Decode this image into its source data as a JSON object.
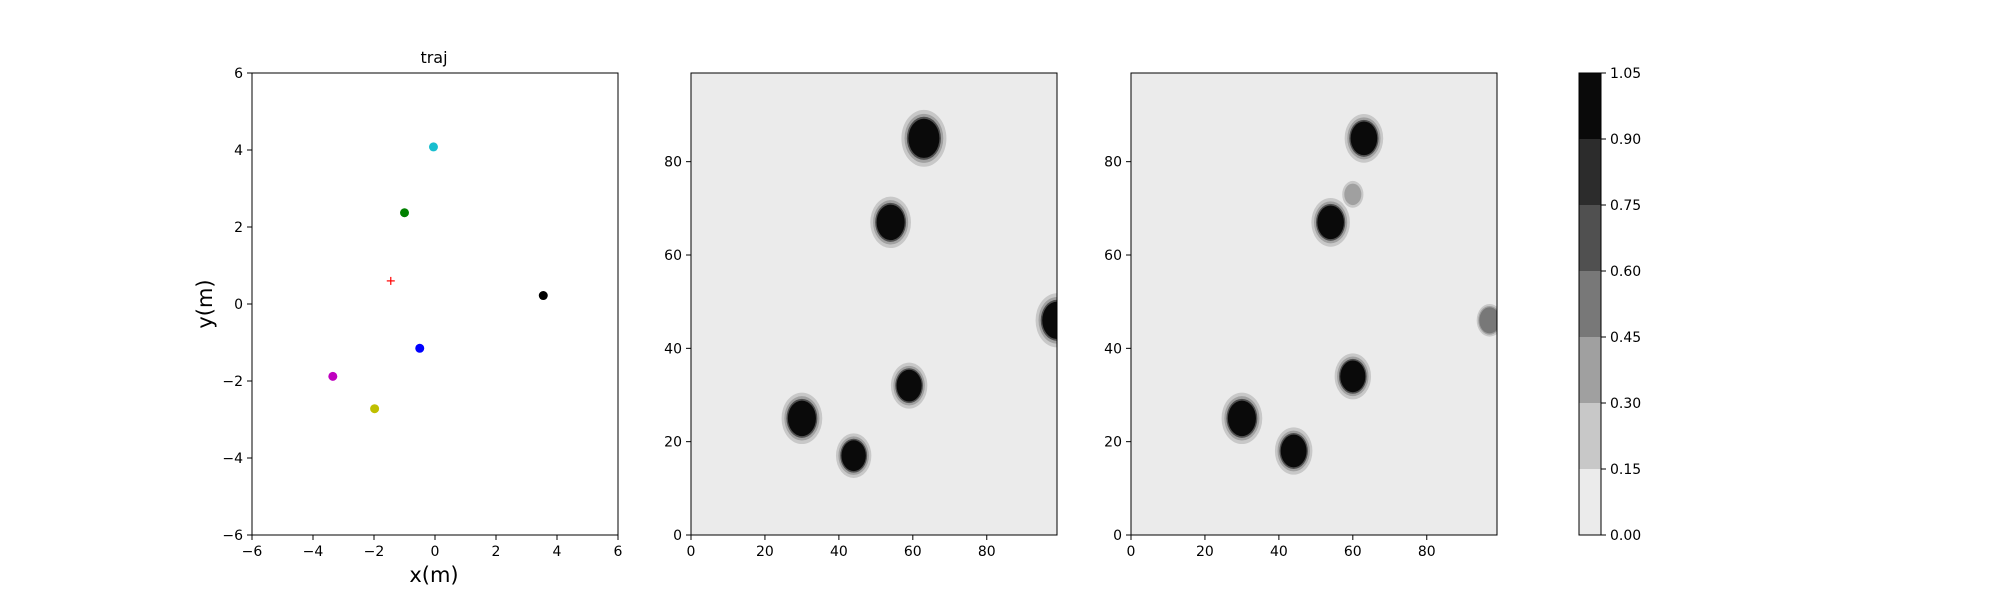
{
  "chart_data": [
    {
      "type": "scatter",
      "title": "traj",
      "xlabel": "x(m)",
      "ylabel": "y(m)",
      "xlim": [
        -6,
        6
      ],
      "ylim": [
        -6,
        6
      ],
      "xticks": [
        -6,
        -4,
        -2,
        0,
        2,
        4,
        6
      ],
      "yticks": [
        -6,
        -4,
        -2,
        0,
        2,
        4,
        6
      ],
      "grid": false,
      "points": [
        {
          "x": -0.05,
          "y": 4.08,
          "color": "#17becf",
          "marker": "circle"
        },
        {
          "x": -1.0,
          "y": 2.37,
          "color": "#008000",
          "marker": "circle"
        },
        {
          "x": -1.45,
          "y": 0.6,
          "color": "#ff0000",
          "marker": "plus"
        },
        {
          "x": 3.55,
          "y": 0.22,
          "color": "#000000",
          "marker": "circle"
        },
        {
          "x": -0.5,
          "y": -1.15,
          "color": "#0000ff",
          "marker": "circle"
        },
        {
          "x": -3.35,
          "y": -1.88,
          "color": "#bf00bf",
          "marker": "circle"
        },
        {
          "x": -1.98,
          "y": -2.72,
          "color": "#bfbf00",
          "marker": "circle"
        }
      ]
    },
    {
      "type": "heatmap",
      "title": "",
      "xlim": [
        0,
        99
      ],
      "ylim": [
        0,
        99
      ],
      "xticks": [
        0,
        20,
        40,
        60,
        80
      ],
      "yticks": [
        0,
        20,
        40,
        60,
        80
      ],
      "background_level": 0.0,
      "blobs": [
        {
          "x": 63,
          "y": 85,
          "r": 4.2,
          "level": 1.0
        },
        {
          "x": 54,
          "y": 67,
          "r": 3.8,
          "level": 1.0
        },
        {
          "x": 99,
          "y": 46,
          "r": 4.0,
          "level": 1.0
        },
        {
          "x": 59,
          "y": 32,
          "r": 3.4,
          "level": 1.0
        },
        {
          "x": 30,
          "y": 25,
          "r": 3.8,
          "level": 1.0
        },
        {
          "x": 44,
          "y": 17,
          "r": 3.3,
          "level": 1.0
        }
      ]
    },
    {
      "type": "heatmap",
      "title": "",
      "xlim": [
        0,
        99
      ],
      "ylim": [
        0,
        99
      ],
      "xticks": [
        0,
        20,
        40,
        60,
        80
      ],
      "yticks": [
        0,
        20,
        40,
        60,
        80
      ],
      "background_level": 0.0,
      "blobs": [
        {
          "x": 63,
          "y": 85,
          "r": 3.6,
          "level": 1.0
        },
        {
          "x": 54,
          "y": 67,
          "r": 3.6,
          "level": 0.95
        },
        {
          "x": 60,
          "y": 73,
          "r": 2.3,
          "level": 0.4
        },
        {
          "x": 97,
          "y": 46,
          "r": 2.8,
          "level": 0.55
        },
        {
          "x": 60,
          "y": 34,
          "r": 3.4,
          "level": 1.0
        },
        {
          "x": 30,
          "y": 25,
          "r": 3.8,
          "level": 1.0
        },
        {
          "x": 44,
          "y": 18,
          "r": 3.5,
          "level": 1.0
        }
      ]
    },
    {
      "type": "colorbar",
      "levels": [
        0.0,
        0.15,
        0.3,
        0.45,
        0.6,
        0.75,
        0.9,
        1.05
      ],
      "tick_labels": [
        "0.00",
        "0.15",
        "0.30",
        "0.45",
        "0.60",
        "0.75",
        "0.90",
        "1.05"
      ],
      "colors": [
        "#ebebeb",
        "#c8c8c8",
        "#a0a0a0",
        "#787878",
        "#505050",
        "#2c2c2c",
        "#0a0a0a"
      ]
    }
  ]
}
